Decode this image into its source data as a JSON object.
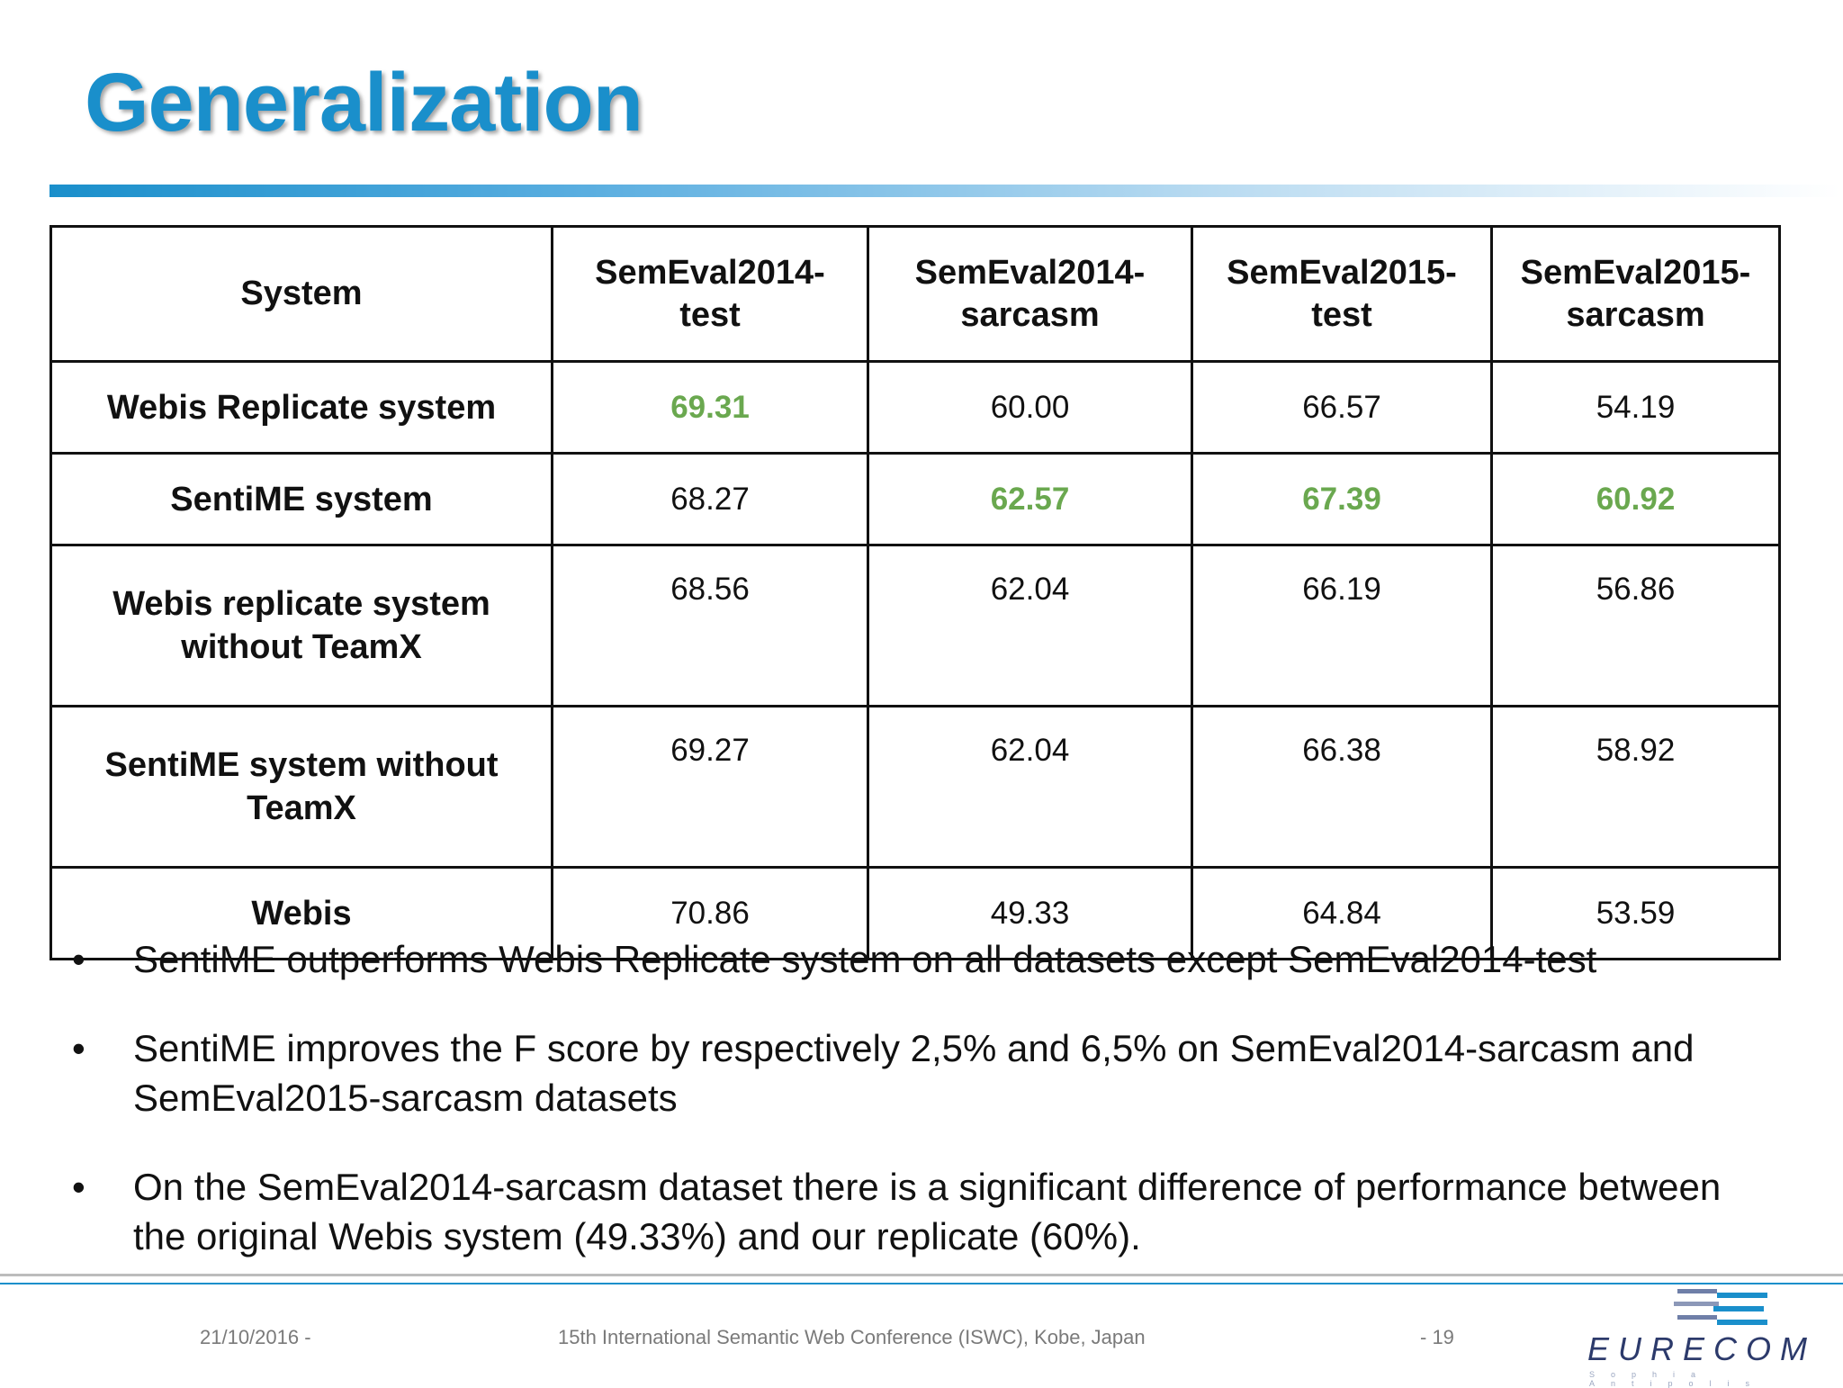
{
  "slide": {
    "title": "Generalization"
  },
  "table": {
    "headers": [
      "System",
      "SemEval2014-\ntest",
      "SemEval2014-\nsarcasm",
      "SemEval2015-\ntest",
      "SemEval2015-\nsarcasm"
    ],
    "rows": [
      {
        "system": "Webis Replicate system",
        "values": [
          "69.31",
          "60.00",
          "66.57",
          "54.19"
        ]
      },
      {
        "system": "SentiME system",
        "values": [
          "68.27",
          "62.57",
          "67.39",
          "60.92"
        ]
      },
      {
        "system": "Webis replicate system\nwithout TeamX",
        "values": [
          "68.56",
          "62.04",
          "66.19",
          "56.86"
        ]
      },
      {
        "system": "SentiME system without\nTeamX",
        "values": [
          "69.27",
          "62.04",
          "66.38",
          "58.92"
        ]
      },
      {
        "system": "Webis",
        "values": [
          "70.86",
          "49.33",
          "64.84",
          "53.59"
        ]
      }
    ],
    "highlight_color": "#6aa84f"
  },
  "bullets": [
    "SentiME outperforms Webis Replicate system on all datasets except SemEval2014-test",
    "SentiME improves the F score by respectively 2,5% and 6,5% on SemEval2014-sarcasm and SemEval2015-sarcasm datasets",
    "On the SemEval2014-sarcasm dataset there is a significant difference of performance between the original Webis system (49.33%) and our replicate (60%)."
  ],
  "bullet_symbol": "•",
  "footer": {
    "date": "21/10/2016 -",
    "conference": "15th International Semantic Web Conference (ISWC), Kobe, Japan",
    "page": "- 19",
    "logo_text": "EURECOM",
    "logo_sub": "Sophia Antipolis"
  }
}
